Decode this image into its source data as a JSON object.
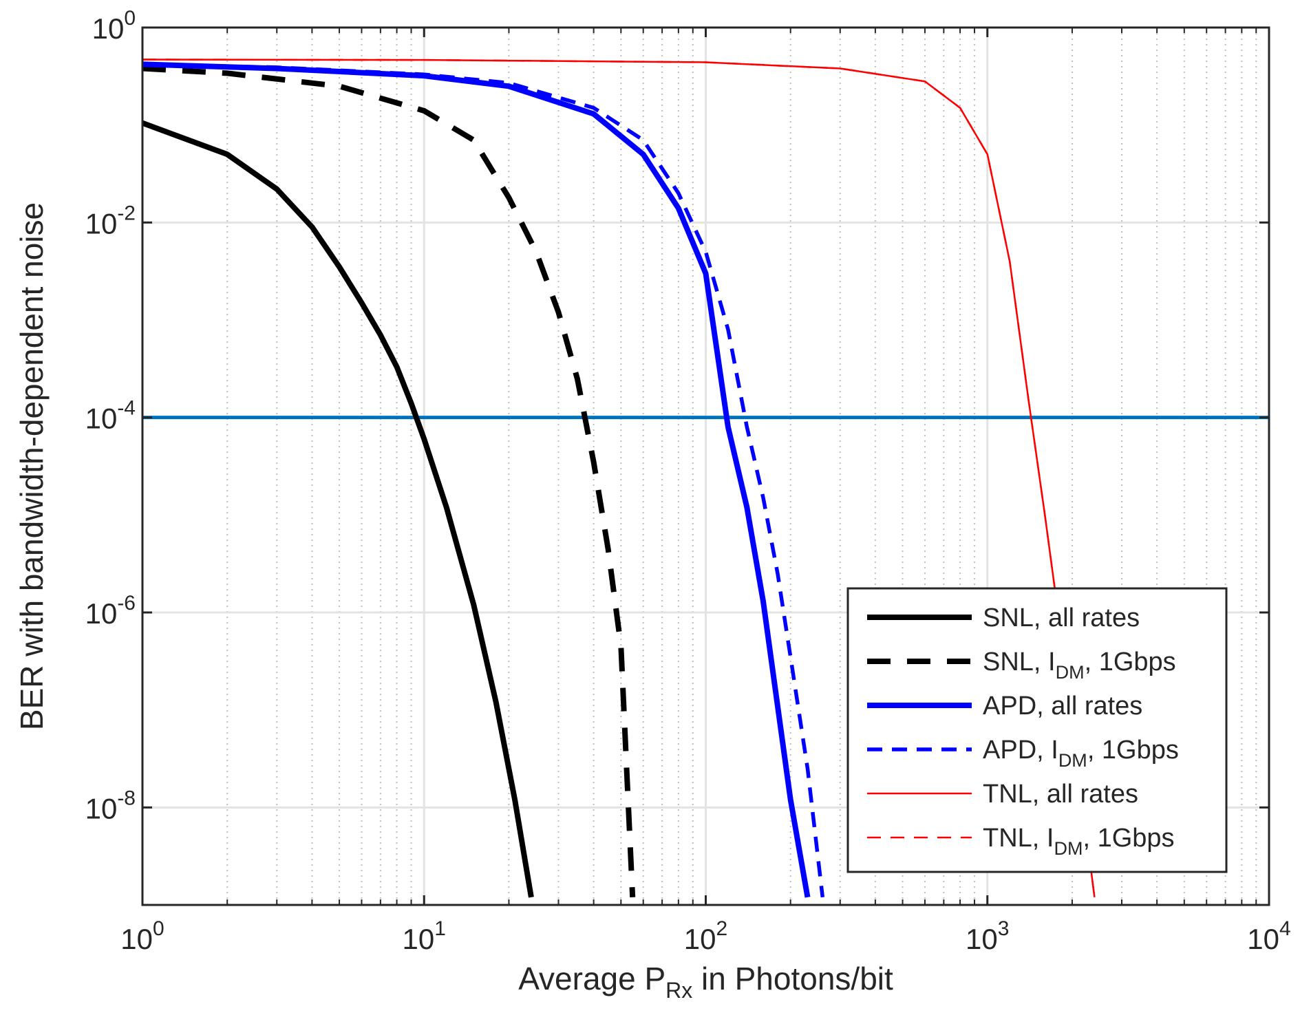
{
  "chart_data": {
    "type": "line",
    "title": "",
    "xlabel": {
      "prefix": "Average P",
      "sub": "Rx",
      "suffix": " in Photons/bit"
    },
    "ylabel": "BER with bandwidth-dependent noise",
    "xscale": "log",
    "yscale": "log",
    "xlim": [
      1,
      10000
    ],
    "ylim": [
      1e-09,
      1
    ],
    "grid": true,
    "minor_grid": true,
    "legend_position": "bottom-right",
    "x_ticks": [
      {
        "value": 1,
        "base": "10",
        "exp": "0"
      },
      {
        "value": 10,
        "base": "10",
        "exp": "1"
      },
      {
        "value": 100,
        "base": "10",
        "exp": "2"
      },
      {
        "value": 1000,
        "base": "10",
        "exp": "3"
      },
      {
        "value": 10000,
        "base": "10",
        "exp": "4"
      }
    ],
    "y_ticks": [
      {
        "value": 1,
        "base": "10",
        "exp": "0"
      },
      {
        "value": 0.01,
        "base": "10",
        "exp": "-2"
      },
      {
        "value": 0.0001,
        "base": "10",
        "exp": "-4"
      },
      {
        "value": 1e-06,
        "base": "10",
        "exp": "-6"
      },
      {
        "value": 1e-08,
        "base": "10",
        "exp": "-8"
      }
    ],
    "reference_line": {
      "y": 0.0001,
      "color": "#0072BD"
    },
    "series": [
      {
        "name": "SNL, all rates",
        "label_parts": [
          "SNL, all rates"
        ],
        "color": "#000000",
        "style": "solid",
        "weight": "thick",
        "points": [
          [
            1,
            0.105
          ],
          [
            2,
            0.05
          ],
          [
            3,
            0.022
          ],
          [
            4,
            0.009
          ],
          [
            5,
            0.0035
          ],
          [
            6,
            0.0015
          ],
          [
            7,
            0.0007
          ],
          [
            8,
            0.00033
          ],
          [
            9,
            0.00014
          ],
          [
            10,
            6e-05
          ],
          [
            12,
            1.2e-05
          ],
          [
            15,
            1.2e-06
          ],
          [
            18,
            1.2e-07
          ],
          [
            21,
            1.2e-08
          ],
          [
            24,
            1.2e-09
          ]
        ]
      },
      {
        "name": "SNL, IDM, 1Gbps",
        "label_parts": [
          "SNL, I",
          "DM",
          ", 1Gbps"
        ],
        "color": "#000000",
        "style": "dash",
        "weight": "thick",
        "points": [
          [
            1,
            0.38
          ],
          [
            2,
            0.34
          ],
          [
            5,
            0.25
          ],
          [
            10,
            0.14
          ],
          [
            15,
            0.07
          ],
          [
            20,
            0.018
          ],
          [
            25,
            0.005
          ],
          [
            30,
            0.0012
          ],
          [
            35,
            0.00025
          ],
          [
            40,
            3.5e-05
          ],
          [
            45,
            4.5e-06
          ],
          [
            50,
            4.5e-07
          ],
          [
            55,
            1.2e-09
          ]
        ]
      },
      {
        "name": "APD, all rates",
        "label_parts": [
          "APD, all rates"
        ],
        "color": "#0000FF",
        "style": "solid",
        "weight": "thick",
        "points": [
          [
            1,
            0.42
          ],
          [
            3,
            0.38
          ],
          [
            10,
            0.32
          ],
          [
            20,
            0.25
          ],
          [
            40,
            0.13
          ],
          [
            60,
            0.05
          ],
          [
            80,
            0.014
          ],
          [
            100,
            0.003
          ],
          [
            120,
            8e-05
          ],
          [
            140,
            1.2e-05
          ],
          [
            160,
            1.3e-06
          ],
          [
            200,
            1.2e-08
          ],
          [
            230,
            1.2e-09
          ]
        ]
      },
      {
        "name": "APD, IDM, 1Gbps",
        "label_parts": [
          "APD, I",
          "DM",
          ", 1Gbps"
        ],
        "color": "#0000FF",
        "style": "dash",
        "weight": "medium",
        "points": [
          [
            1,
            0.42
          ],
          [
            3,
            0.39
          ],
          [
            10,
            0.33
          ],
          [
            20,
            0.27
          ],
          [
            40,
            0.15
          ],
          [
            60,
            0.07
          ],
          [
            80,
            0.02
          ],
          [
            100,
            0.005
          ],
          [
            120,
            0.0008
          ],
          [
            140,
            8e-05
          ],
          [
            160,
            1.5e-05
          ],
          [
            180,
            2.5e-06
          ],
          [
            200,
            3.5e-07
          ],
          [
            230,
            2.5e-08
          ],
          [
            260,
            1.2e-09
          ]
        ]
      },
      {
        "name": "TNL, all rates",
        "label_parts": [
          "TNL, all rates"
        ],
        "color": "#FF0000",
        "style": "solid",
        "weight": "thin",
        "points": [
          [
            1,
            0.47
          ],
          [
            10,
            0.465
          ],
          [
            100,
            0.44
          ],
          [
            300,
            0.38
          ],
          [
            600,
            0.28
          ],
          [
            800,
            0.15
          ],
          [
            1000,
            0.05
          ],
          [
            1200,
            0.004
          ],
          [
            1400,
            0.00015
          ],
          [
            1600,
            1e-05
          ],
          [
            1800,
            8e-07
          ],
          [
            2100,
            2.5e-08
          ],
          [
            2400,
            1.2e-09
          ]
        ]
      },
      {
        "name": "TNL, IDM, 1Gbps",
        "label_parts": [
          "TNL, I",
          "DM",
          ", 1Gbps"
        ],
        "color": "#FF0000",
        "style": "dash",
        "weight": "thin",
        "points": [
          [
            1,
            0.47
          ],
          [
            10,
            0.465
          ],
          [
            100,
            0.44
          ],
          [
            300,
            0.38
          ],
          [
            600,
            0.28
          ],
          [
            800,
            0.15
          ],
          [
            1000,
            0.05
          ],
          [
            1200,
            0.004
          ],
          [
            1400,
            0.00015
          ],
          [
            1600,
            1e-05
          ],
          [
            1800,
            8e-07
          ],
          [
            2100,
            2.5e-08
          ],
          [
            2400,
            1.2e-09
          ]
        ]
      }
    ]
  }
}
